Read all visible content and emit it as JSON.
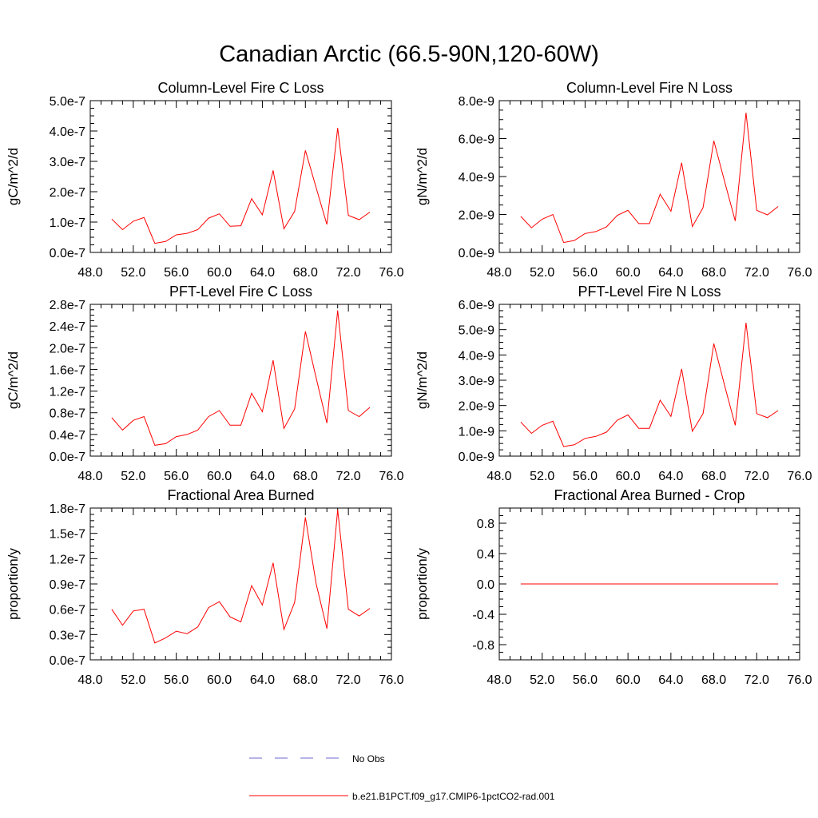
{
  "title": "Canadian Arctic (66.5-90N,120-60W)",
  "colors": {
    "model": "#ff0000",
    "obs": "#6a6ad0",
    "axis": "#000000"
  },
  "legend": {
    "placement": "bottom-center",
    "entries": [
      {
        "label": "No Obs",
        "style": "dashed",
        "color": "#6a6ad0"
      },
      {
        "label": "b.e21.B1PCT.f09_g17.CMIP6-1pctCO2-rad.001",
        "style": "solid",
        "color": "#ff0000"
      }
    ]
  },
  "chart_data": [
    {
      "type": "line",
      "title": "Column-Level Fire C Loss",
      "ylabel": "gC/m^2/d",
      "xlabel": "",
      "xlim": [
        48,
        76
      ],
      "ylim": [
        0,
        5e-07
      ],
      "xticks": [
        48,
        52,
        56,
        60,
        64,
        68,
        72,
        76
      ],
      "xtick_labels": [
        "48.0",
        "52.0",
        "56.0",
        "60.0",
        "64.0",
        "68.0",
        "72.0",
        "76.0"
      ],
      "yticks": [
        0,
        1e-07,
        2e-07,
        3e-07,
        4e-07,
        5e-07
      ],
      "ytick_labels": [
        "0.0e-7",
        "1.0e-7",
        "2.0e-7",
        "3.0e-7",
        "4.0e-7",
        "5.0e-7"
      ],
      "x": [
        50,
        51,
        52,
        53,
        54,
        55,
        56,
        57,
        58,
        59,
        60,
        61,
        62,
        63,
        64,
        65,
        66,
        67,
        68,
        69,
        70,
        71,
        72,
        73,
        74
      ],
      "series": [
        {
          "values": [
            1.1e-07,
            7.5e-08,
            1.03e-07,
            1.15e-07,
            3e-08,
            3.6e-08,
            5.8e-08,
            6.3e-08,
            7.5e-08,
            1.13e-07,
            1.27e-07,
            8.6e-08,
            8.8e-08,
            1.77e-07,
            1.24e-07,
            2.7e-07,
            7.8e-08,
            1.35e-07,
            3.36e-07,
            2.13e-07,
            9.2e-08,
            4.1e-07,
            1.22e-07,
            1.08e-07,
            1.33e-07
          ]
        }
      ]
    },
    {
      "type": "line",
      "title": "Column-Level Fire N Loss",
      "ylabel": "gN/m^2/d",
      "xlabel": "",
      "xlim": [
        48,
        76
      ],
      "ylim": [
        0,
        8e-09
      ],
      "xticks": [
        48,
        52,
        56,
        60,
        64,
        68,
        72,
        76
      ],
      "xtick_labels": [
        "48.0",
        "52.0",
        "56.0",
        "60.0",
        "64.0",
        "68.0",
        "72.0",
        "76.0"
      ],
      "yticks": [
        0,
        2e-09,
        4e-09,
        6e-09,
        8e-09
      ],
      "ytick_labels": [
        "0.0e-9",
        "2.0e-9",
        "4.0e-9",
        "6.0e-9",
        "8.0e-9"
      ],
      "x": [
        50,
        51,
        52,
        53,
        54,
        55,
        56,
        57,
        58,
        59,
        60,
        61,
        62,
        63,
        64,
        65,
        66,
        67,
        68,
        69,
        70,
        71,
        72,
        73,
        74
      ],
      "series": [
        {
          "values": [
            1.9e-09,
            1.3e-09,
            1.75e-09,
            2e-09,
            5.2e-10,
            6.3e-10,
            1e-09,
            1.1e-09,
            1.35e-09,
            1.95e-09,
            2.22e-09,
            1.52e-09,
            1.52e-09,
            3.07e-09,
            2.17e-09,
            4.73e-09,
            1.36e-09,
            2.36e-09,
            5.88e-09,
            3.75e-09,
            1.66e-09,
            7.36e-09,
            2.22e-09,
            1.98e-09,
            2.42e-09
          ]
        }
      ]
    },
    {
      "type": "line",
      "title": "PFT-Level Fire C Loss",
      "ylabel": "gC/m^2/d",
      "xlabel": "",
      "xlim": [
        48,
        76
      ],
      "ylim": [
        0,
        2.8e-07
      ],
      "xticks": [
        48,
        52,
        56,
        60,
        64,
        68,
        72,
        76
      ],
      "xtick_labels": [
        "48.0",
        "52.0",
        "56.0",
        "60.0",
        "64.0",
        "68.0",
        "72.0",
        "76.0"
      ],
      "yticks": [
        0,
        4e-08,
        8e-08,
        1.2e-07,
        1.6e-07,
        2e-07,
        2.4e-07,
        2.8e-07
      ],
      "ytick_labels": [
        "0.0e-7",
        "0.4e-7",
        "0.8e-7",
        "1.2e-7",
        "1.6e-7",
        "2.0e-7",
        "2.4e-7",
        "2.8e-7"
      ],
      "x": [
        50,
        51,
        52,
        53,
        54,
        55,
        56,
        57,
        58,
        59,
        60,
        61,
        62,
        63,
        64,
        65,
        66,
        67,
        68,
        69,
        70,
        71,
        72,
        73,
        74
      ],
      "series": [
        {
          "values": [
            7.1e-08,
            4.8e-08,
            6.6e-08,
            7.3e-08,
            2e-08,
            2.3e-08,
            3.6e-08,
            4e-08,
            4.8e-08,
            7.3e-08,
            8.4e-08,
            5.7e-08,
            5.7e-08,
            1.16e-07,
            8.2e-08,
            1.77e-07,
            5.1e-08,
            8.7e-08,
            2.3e-07,
            1.44e-07,
            6.1e-08,
            2.69e-07,
            8.4e-08,
            7.3e-08,
            9e-08
          ]
        }
      ]
    },
    {
      "type": "line",
      "title": "PFT-Level Fire N Loss",
      "ylabel": "gN/m^2/d",
      "xlabel": "",
      "xlim": [
        48,
        76
      ],
      "ylim": [
        0,
        6e-09
      ],
      "xticks": [
        48,
        52,
        56,
        60,
        64,
        68,
        72,
        76
      ],
      "xtick_labels": [
        "48.0",
        "52.0",
        "56.0",
        "60.0",
        "64.0",
        "68.0",
        "72.0",
        "76.0"
      ],
      "yticks": [
        0,
        1e-09,
        2e-09,
        3e-09,
        4e-09,
        5e-09,
        6e-09
      ],
      "ytick_labels": [
        "0.0e-9",
        "1.0e-9",
        "2.0e-9",
        "3.0e-9",
        "4.0e-9",
        "5.0e-9",
        "6.0e-9"
      ],
      "x": [
        50,
        51,
        52,
        53,
        54,
        55,
        56,
        57,
        58,
        59,
        60,
        61,
        62,
        63,
        64,
        65,
        66,
        67,
        68,
        69,
        70,
        71,
        72,
        73,
        74
      ],
      "series": [
        {
          "values": [
            1.35e-09,
            9e-10,
            1.22e-09,
            1.38e-09,
            3.8e-10,
            4.5e-10,
            7e-10,
            7.8e-10,
            9.5e-10,
            1.42e-09,
            1.63e-09,
            1.1e-09,
            1.1e-09,
            2.21e-09,
            1.57e-09,
            3.45e-09,
            9.8e-10,
            1.68e-09,
            4.45e-09,
            2.8e-09,
            1.22e-09,
            5.27e-09,
            1.68e-09,
            1.52e-09,
            1.8e-09
          ]
        }
      ]
    },
    {
      "type": "line",
      "title": "Fractional Area Burned",
      "ylabel": "proportion/y",
      "xlabel": "",
      "xlim": [
        48,
        76
      ],
      "ylim": [
        0,
        1.8e-07
      ],
      "xticks": [
        48,
        52,
        56,
        60,
        64,
        68,
        72,
        76
      ],
      "xtick_labels": [
        "48.0",
        "52.0",
        "56.0",
        "60.0",
        "64.0",
        "68.0",
        "72.0",
        "76.0"
      ],
      "yticks": [
        0,
        3e-08,
        6e-08,
        9e-08,
        1.2e-07,
        1.5e-07,
        1.8e-07
      ],
      "ytick_labels": [
        "0.0e-7",
        "0.3e-7",
        "0.6e-7",
        "0.9e-7",
        "1.2e-7",
        "1.5e-7",
        "1.8e-7"
      ],
      "x": [
        50,
        51,
        52,
        53,
        54,
        55,
        56,
        57,
        58,
        59,
        60,
        61,
        62,
        63,
        64,
        65,
        66,
        67,
        68,
        69,
        70,
        71,
        72,
        73,
        74
      ],
      "series": [
        {
          "values": [
            6e-08,
            4.1e-08,
            5.8e-08,
            6e-08,
            2e-08,
            2.6e-08,
            3.4e-08,
            3.1e-08,
            3.9e-08,
            6.2e-08,
            6.9e-08,
            5.1e-08,
            4.5e-08,
            8.8e-08,
            6.5e-08,
            1.15e-07,
            3.6e-08,
            6.8e-08,
            1.69e-07,
            9e-08,
            3.7e-08,
            1.78e-07,
            6e-08,
            5.2e-08,
            6.1e-08
          ]
        }
      ]
    },
    {
      "type": "line",
      "title": "Fractional Area Burned - Crop",
      "ylabel": "proportion/y",
      "xlabel": "",
      "xlim": [
        48,
        76
      ],
      "ylim": [
        -1,
        1
      ],
      "xticks": [
        48,
        52,
        56,
        60,
        64,
        68,
        72,
        76
      ],
      "xtick_labels": [
        "48.0",
        "52.0",
        "56.0",
        "60.0",
        "64.0",
        "68.0",
        "72.0",
        "76.0"
      ],
      "yticks": [
        -0.8,
        -0.4,
        0,
        0.4,
        0.8
      ],
      "ytick_labels": [
        "-0.8",
        "-0.4",
        "0.0",
        "0.4",
        "0.8"
      ],
      "x": [
        50,
        51,
        52,
        53,
        54,
        55,
        56,
        57,
        58,
        59,
        60,
        61,
        62,
        63,
        64,
        65,
        66,
        67,
        68,
        69,
        70,
        71,
        72,
        73,
        74
      ],
      "series": [
        {
          "values": [
            0,
            0,
            0,
            0,
            0,
            0,
            0,
            0,
            0,
            0,
            0,
            0,
            0,
            0,
            0,
            0,
            0,
            0,
            0,
            0,
            0,
            0,
            0,
            0,
            0
          ]
        }
      ]
    }
  ]
}
